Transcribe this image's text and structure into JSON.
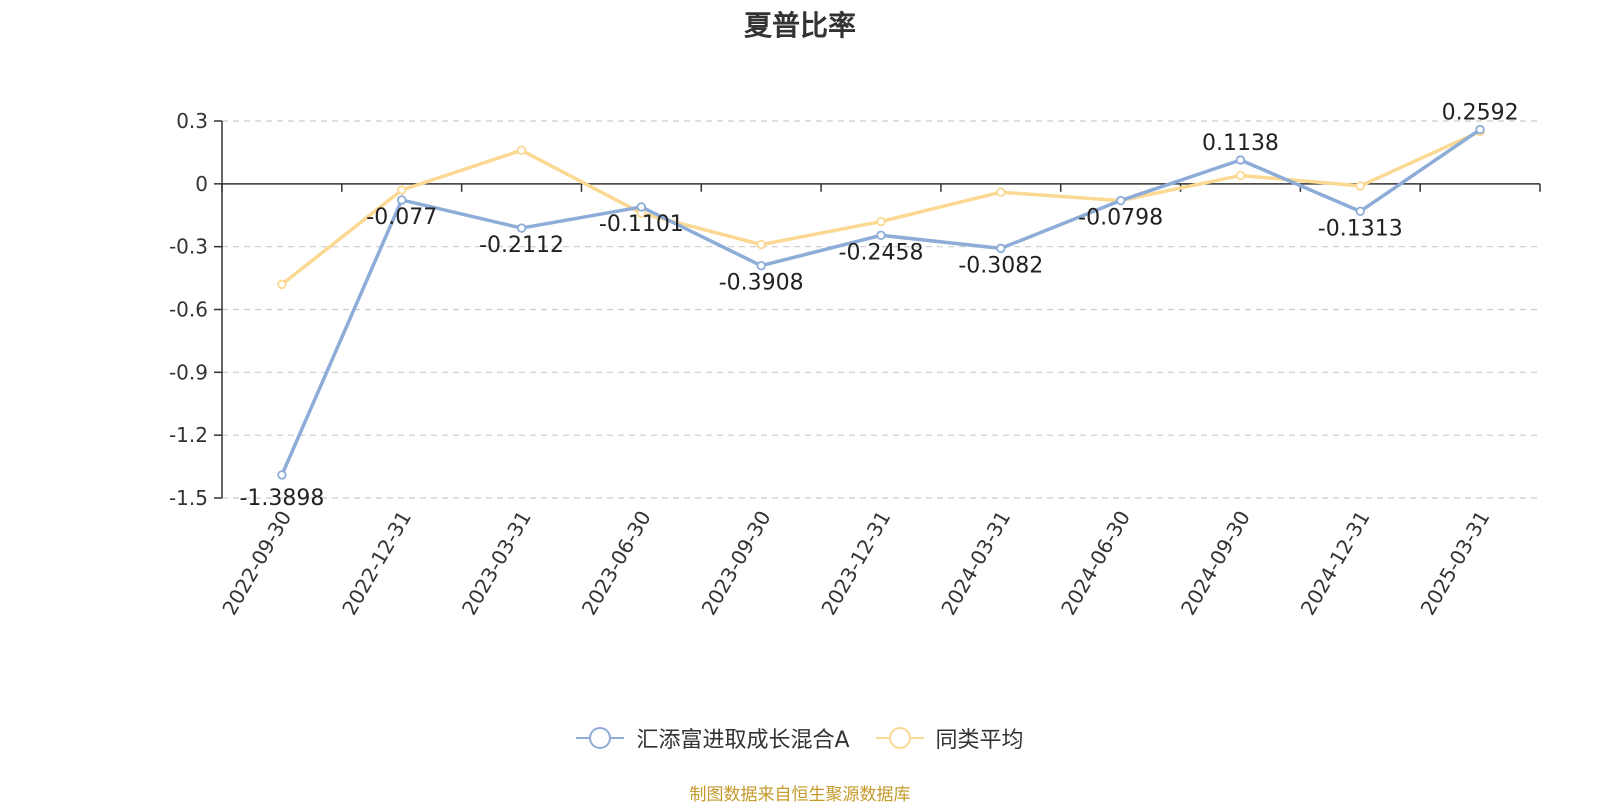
{
  "chart_data": {
    "type": "line",
    "title": "夏普比率",
    "categories": [
      "2022-09-30",
      "2022-12-31",
      "2023-03-31",
      "2023-06-30",
      "2023-09-30",
      "2023-12-31",
      "2024-03-31",
      "2024-06-30",
      "2024-09-30",
      "2024-12-31",
      "2025-03-31"
    ],
    "series": [
      {
        "name": "汇添富进取成长混合A",
        "color": "#8eacd8",
        "values": [
          -1.3898,
          -0.077,
          -0.2112,
          -0.1101,
          -0.3908,
          -0.2458,
          -0.3082,
          -0.0798,
          0.1138,
          -0.1313,
          0.2592
        ],
        "labels": [
          "-1.3898",
          "-0.077",
          "-0.2112",
          "-0.1101",
          "-0.3908",
          "-0.2458",
          "-0.3082",
          "-0.0798",
          "0.1138",
          "-0.1313",
          "0.2592"
        ]
      },
      {
        "name": "同类平均",
        "color": "#fbd993",
        "values": [
          -0.48,
          -0.03,
          0.16,
          -0.14,
          -0.29,
          -0.18,
          -0.04,
          -0.08,
          0.04,
          -0.01,
          0.25
        ]
      }
    ],
    "ylim": [
      -1.5,
      0.3
    ],
    "yticks": [
      "0.3",
      "0",
      "-0.3",
      "-0.6",
      "-0.9",
      "-1.2",
      "-1.5"
    ],
    "grid": true,
    "legend": "bottom"
  },
  "source_note": "制图数据来自恒生聚源数据库"
}
